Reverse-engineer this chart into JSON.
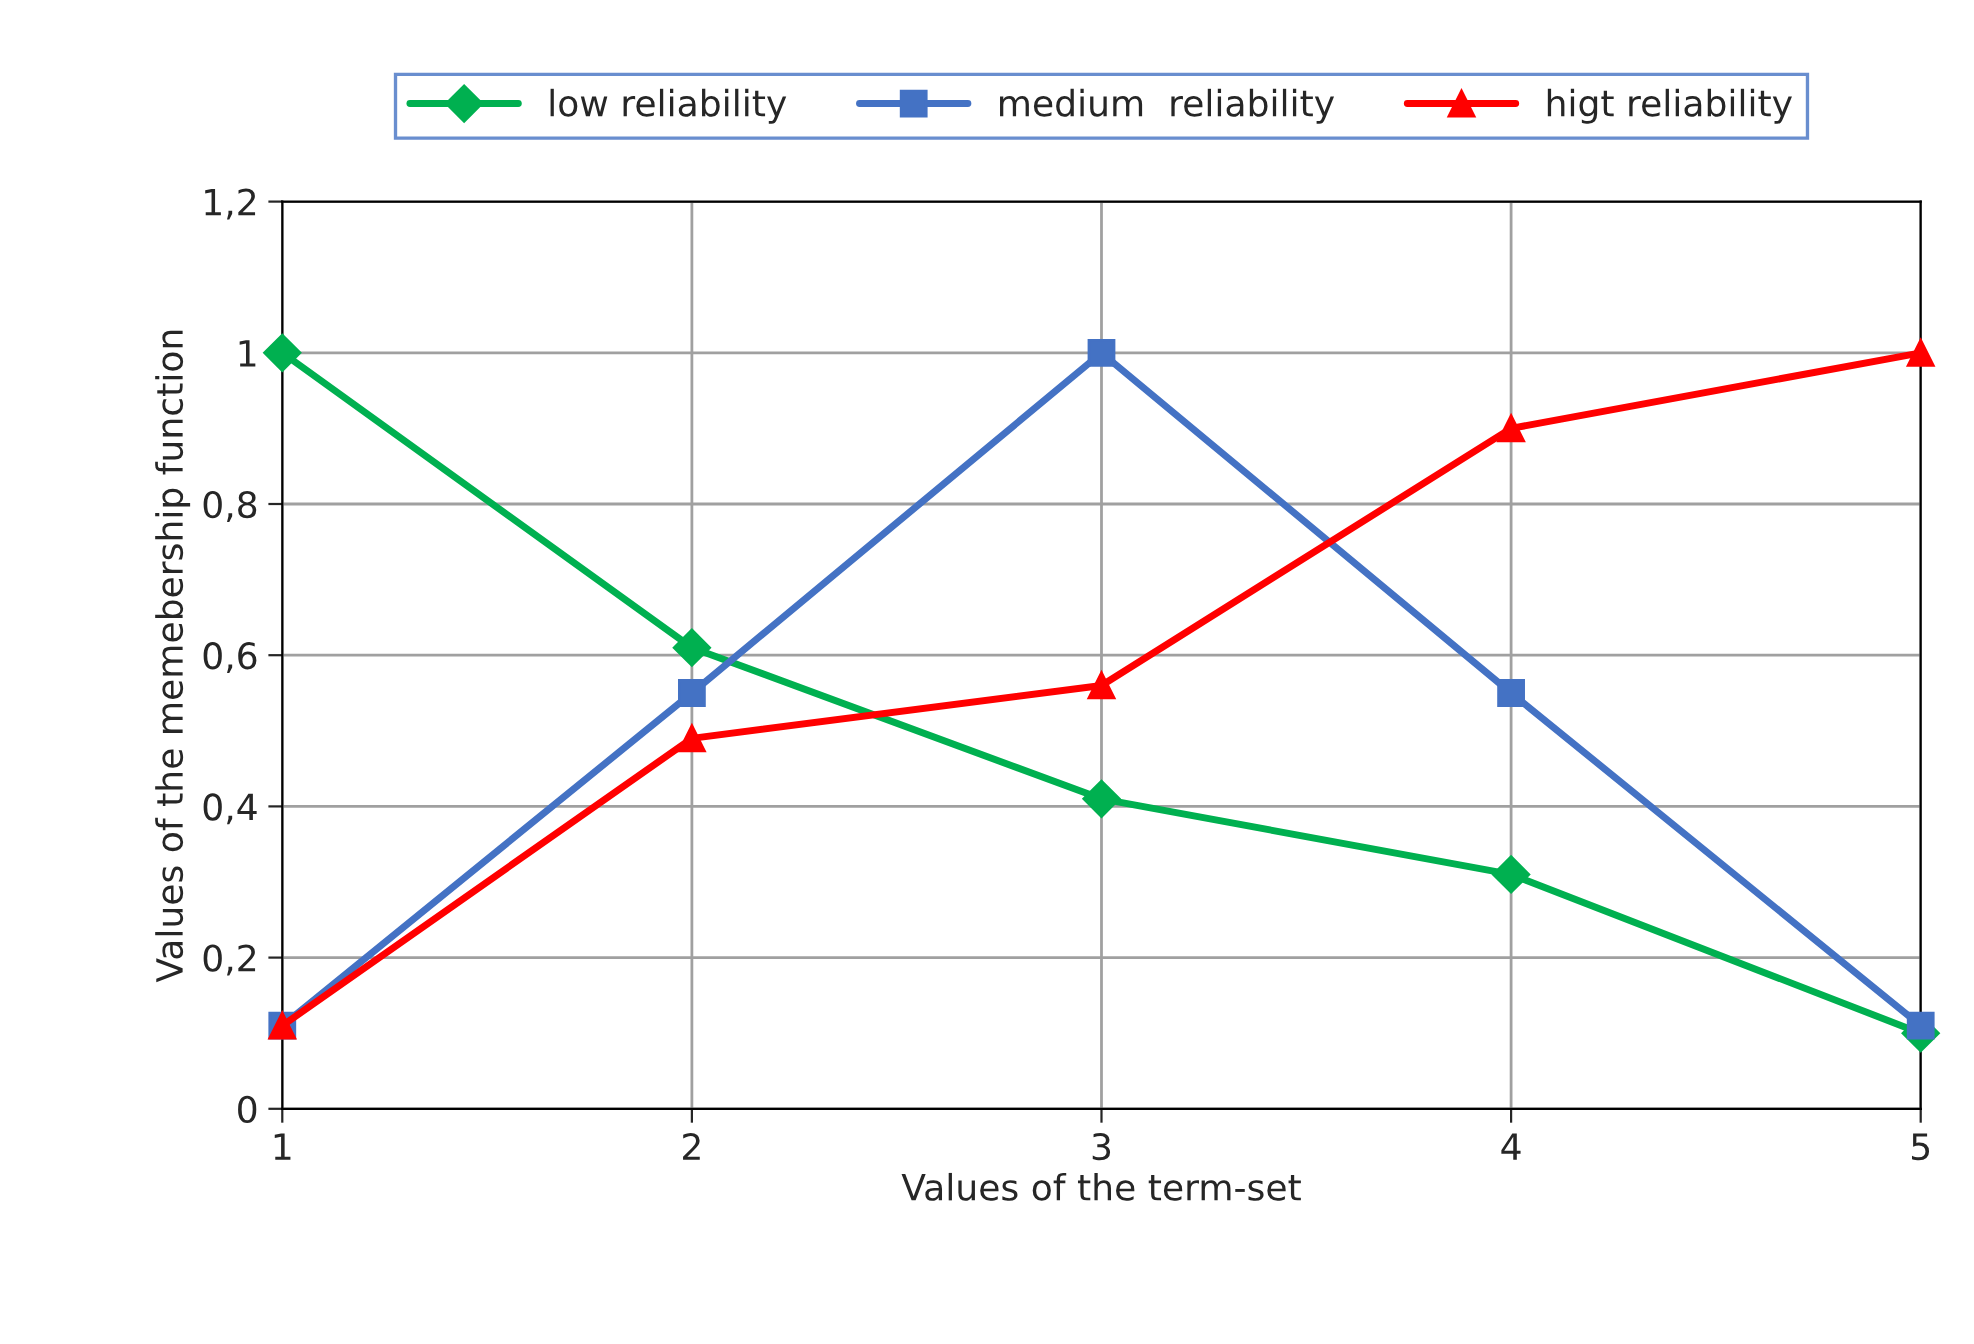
{
  "chart_data": {
    "type": "line",
    "xlabel": "Values of the term-set",
    "ylabel": "Values of the memebership function",
    "x": [
      1,
      2,
      3,
      4,
      5
    ],
    "series": [
      {
        "name": "low reliability",
        "color": "#00b050",
        "marker": "diamond",
        "values": [
          1,
          0.61,
          0.41,
          0.31,
          0.1
        ]
      },
      {
        "name": "medium  reliability",
        "color": "#4472c4",
        "marker": "square",
        "values": [
          0.11,
          0.55,
          1,
          0.55,
          0.11
        ]
      },
      {
        "name": "higt reliability",
        "color": "#ff0000",
        "marker": "triangle",
        "values": [
          0.11,
          0.49,
          0.56,
          0.9,
          1
        ]
      }
    ],
    "xlim": [
      1,
      5
    ],
    "xticks": [
      1,
      2,
      3,
      4,
      5
    ],
    "ylim": [
      0,
      1.2
    ],
    "yticks": [
      0,
      {
        "value": 0.2,
        "label": "0,2"
      },
      {
        "value": 0.4,
        "label": "0,4"
      },
      {
        "value": 0.6,
        "label": "0,6"
      },
      {
        "value": 0.8,
        "label": "0,8"
      },
      1,
      {
        "value": 1.2,
        "label": "1,2"
      }
    ],
    "grid": true,
    "legend": "top",
    "line_style": "solid"
  }
}
